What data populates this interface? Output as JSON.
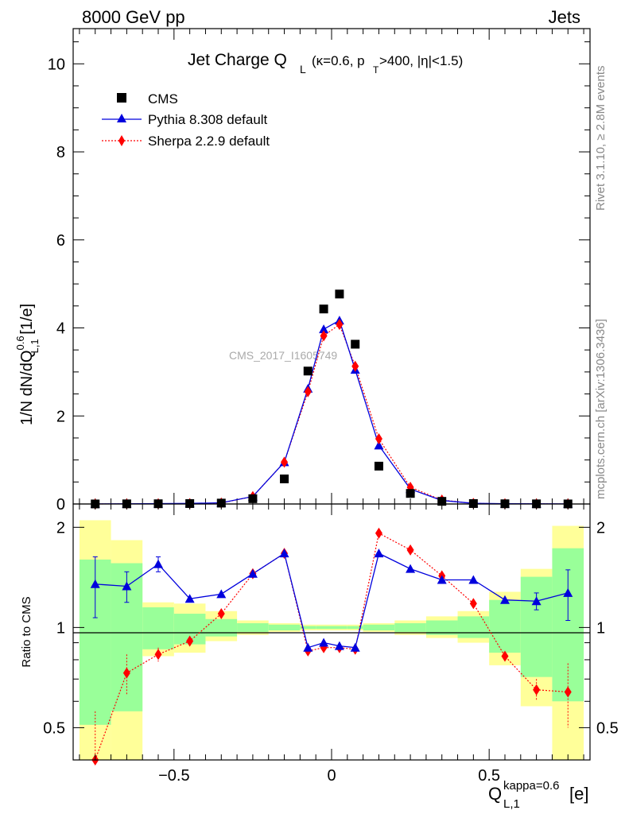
{
  "header": {
    "left": "8000 GeV pp",
    "right": "Jets"
  },
  "side_text": {
    "rivet": "Rivet 3.1.10, ≥ 2.8M events",
    "mcplots": "mcplots.cern.ch [arXiv:1306.3436]"
  },
  "watermark": "CMS_2017_I1605749",
  "colors": {
    "cms": "#000000",
    "pythia": "#0000dd",
    "sherpa": "#ff0000",
    "band_green": "#99ff99",
    "band_yellow": "#ffff99"
  },
  "chart_data": [
    {
      "type": "scatter",
      "panel": "main",
      "title": "Jet Charge Q_L (κ=0.6, p_T>400, |η|<1.5)",
      "title_parts": {
        "main": "Jet Charge Q",
        "main_sub": "L",
        "kappa": "(κ=0.6, p",
        "pt_sub": "T",
        "rest": ">400, |η|<1.5)"
      },
      "ylabel": "1/N dN/dQ_{L,1}^{0.6} [1/e]",
      "ylabel_parts": {
        "pre": "1/N dN/dQ",
        "sup": "0.6",
        "sub": "L,1",
        "post": " [1/e]"
      },
      "ylim": [
        0,
        10.8
      ],
      "yticks": [
        0,
        2,
        4,
        6,
        8,
        10
      ],
      "ytick_labels": [
        "0",
        "2",
        "4",
        "6",
        "8",
        "10"
      ],
      "xlim": [
        -0.82,
        0.82
      ],
      "x": [
        -0.75,
        -0.65,
        -0.55,
        -0.45,
        -0.35,
        -0.25,
        -0.15,
        -0.075,
        -0.025,
        0.025,
        0.075,
        0.15,
        0.25,
        0.35,
        0.45,
        0.55,
        0.65,
        0.75
      ],
      "legend_position": "top-left",
      "series": [
        {
          "name": "CMS",
          "marker": "square",
          "values": [
            0.001,
            0.003,
            0.005,
            0.01,
            0.02,
            0.12,
            0.57,
            3.02,
            4.43,
            4.77,
            3.63,
            0.86,
            0.24,
            0.06,
            0.01,
            0.005,
            0.003,
            0.001
          ]
        },
        {
          "name": "Pythia 8.308 default",
          "marker": "triangle",
          "values": [
            0.002,
            0.004,
            0.008,
            0.013,
            0.027,
            0.17,
            0.95,
            2.62,
            3.97,
            4.17,
            3.05,
            1.33,
            0.34,
            0.08,
            0.015,
            0.006,
            0.004,
            0.002
          ]
        },
        {
          "name": "Sherpa 2.2.9 default",
          "marker": "diamond",
          "values": [
            0.0003,
            0.002,
            0.004,
            0.009,
            0.022,
            0.17,
            0.95,
            2.55,
            3.82,
            4.08,
            3.13,
            1.48,
            0.38,
            0.09,
            0.013,
            0.004,
            0.002,
            0.001
          ]
        }
      ]
    },
    {
      "type": "line",
      "panel": "ratio",
      "ylabel": "Ratio to CMS",
      "xlabel": "Q_{L,1}^{kappa=0.6} [e]",
      "xlabel_parts": {
        "pre": "Q",
        "sup": "kappa=0.6",
        "sub": "L,1",
        "post": "[e]"
      },
      "xlim": [
        -0.82,
        0.82
      ],
      "xticks": [
        -0.5,
        0,
        0.5
      ],
      "xtick_labels": [
        "−0.5",
        "0",
        "0.5"
      ],
      "yscale": "log",
      "ylim": [
        0.4,
        2.35
      ],
      "yticks": [
        0.5,
        1,
        2
      ],
      "ytick_labels": [
        "0.5",
        "1",
        "2"
      ],
      "x": [
        -0.75,
        -0.65,
        -0.55,
        -0.45,
        -0.35,
        -0.25,
        -0.15,
        -0.075,
        -0.025,
        0.025,
        0.075,
        0.15,
        0.25,
        0.35,
        0.45,
        0.55,
        0.65,
        0.75
      ],
      "series": [
        {
          "name": "Pythia 8.308 default",
          "values": [
            1.35,
            1.33,
            1.55,
            1.22,
            1.26,
            1.45,
            1.67,
            0.87,
            0.9,
            0.88,
            0.87,
            1.67,
            1.5,
            1.39,
            1.39,
            1.21,
            1.2,
            1.27
          ],
          "err_lo": [
            0.28,
            0.14,
            0.08,
            0,
            0,
            0,
            0,
            0,
            0,
            0,
            0,
            0,
            0,
            0,
            0,
            0,
            0.07,
            0.22
          ],
          "err_hi": [
            0.28,
            0.14,
            0.08,
            0,
            0,
            0,
            0,
            0,
            0,
            0,
            0,
            0,
            0,
            0,
            0,
            0,
            0.07,
            0.22
          ]
        },
        {
          "name": "Sherpa 2.2.9 default",
          "values": [
            0.36,
            0.73,
            0.83,
            0.91,
            1.1,
            1.45,
            1.67,
            0.85,
            0.87,
            0.87,
            0.86,
            1.92,
            1.71,
            1.43,
            1.18,
            0.82,
            0.65,
            0.64
          ],
          "err_lo": [
            0.1,
            0.1,
            0.04,
            0,
            0,
            0,
            0,
            0,
            0,
            0,
            0,
            0,
            0,
            0,
            0,
            0,
            0.05,
            0.14
          ],
          "err_hi": [
            0.2,
            0.1,
            0.04,
            0,
            0,
            0,
            0,
            0,
            0,
            0,
            0,
            0,
            0,
            0,
            0,
            0,
            0.05,
            0.14
          ]
        }
      ],
      "bins": [
        -0.8,
        -0.7,
        -0.6,
        -0.5,
        -0.4,
        -0.3,
        -0.2,
        -0.1,
        -0.05,
        0,
        0.05,
        0.1,
        0.2,
        0.3,
        0.4,
        0.5,
        0.6,
        0.7,
        0.8
      ],
      "band_inner": [
        [
          0.51,
          1.6
        ],
        [
          0.56,
          1.56
        ],
        [
          0.86,
          1.15
        ],
        [
          0.89,
          1.1
        ],
        [
          0.94,
          1.06
        ],
        [
          0.97,
          1.03
        ],
        [
          0.98,
          1.02
        ],
        [
          0.99,
          1.01
        ],
        [
          0.99,
          1.01
        ],
        [
          0.99,
          1.01
        ],
        [
          0.99,
          1.01
        ],
        [
          0.98,
          1.02
        ],
        [
          0.97,
          1.03
        ],
        [
          0.95,
          1.05
        ],
        [
          0.93,
          1.08
        ],
        [
          0.84,
          1.21
        ],
        [
          0.71,
          1.42
        ],
        [
          0.6,
          1.73
        ]
      ],
      "band_outer": [
        [
          0.35,
          2.1
        ],
        [
          0.35,
          1.83
        ],
        [
          0.82,
          1.19
        ],
        [
          0.84,
          1.18
        ],
        [
          0.91,
          1.12
        ],
        [
          0.95,
          1.05
        ],
        [
          0.97,
          1.03
        ],
        [
          0.98,
          1.02
        ],
        [
          0.98,
          1.02
        ],
        [
          0.98,
          1.02
        ],
        [
          0.98,
          1.02
        ],
        [
          0.97,
          1.03
        ],
        [
          0.95,
          1.05
        ],
        [
          0.93,
          1.08
        ],
        [
          0.9,
          1.12
        ],
        [
          0.77,
          1.28
        ],
        [
          0.58,
          1.5
        ],
        [
          0.35,
          2.02
        ]
      ]
    }
  ]
}
